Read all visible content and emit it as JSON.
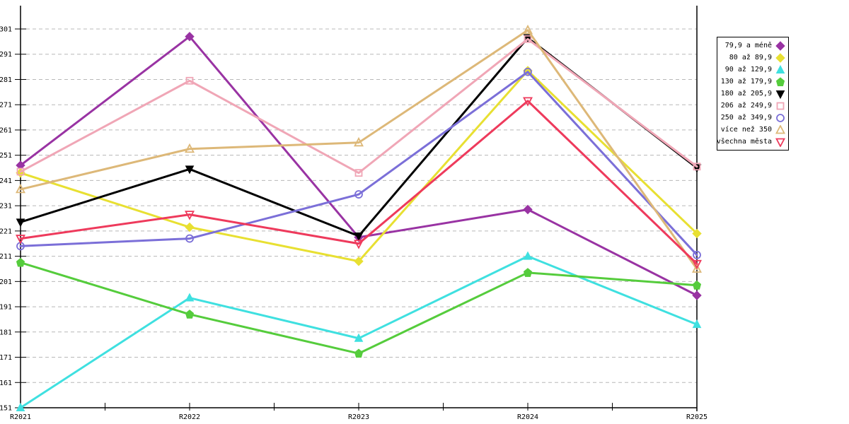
{
  "chart_data": {
    "type": "line",
    "title": "",
    "xlabel": "",
    "ylabel": "",
    "x_categories": [
      "R2021",
      "R2022",
      "R2023",
      "R2024",
      "R2025"
    ],
    "ylim": [
      151,
      301
    ],
    "ytick_step": 10,
    "grid": "horizontal-dashed",
    "grid_color": "#b8b8b8",
    "axis_color": "#000000",
    "legend_position": "outside-right",
    "series": [
      {
        "name": "79,9 a méně",
        "color": "#9933a3",
        "marker": "diamond",
        "marker_fill": "filled",
        "values": [
          247.0,
          298.0,
          218.5,
          229.5,
          195.5
        ]
      },
      {
        "name": "80 až 89,9",
        "color": "#e8e032",
        "marker": "diamond",
        "marker_fill": "filled",
        "values": [
          244.0,
          222.5,
          209.0,
          284.5,
          220.0
        ]
      },
      {
        "name": "90 až 129,9",
        "color": "#3fe0e0",
        "marker": "triangle-up",
        "marker_fill": "filled",
        "values": [
          151.0,
          194.5,
          178.5,
          211.0,
          184.0
        ]
      },
      {
        "name": "130 až 179,9",
        "color": "#55cc3c",
        "marker": "pentagon",
        "marker_fill": "filled",
        "values": [
          208.5,
          188.0,
          172.5,
          204.5,
          199.5
        ]
      },
      {
        "name": "180 až 205,9",
        "color": "#000000",
        "marker": "triangle-down",
        "marker_fill": "filled",
        "values": [
          224.5,
          245.5,
          219.0,
          297.5,
          246.0
        ]
      },
      {
        "name": "206 až 249,9",
        "color": "#f0a6b6",
        "marker": "square",
        "marker_fill": "open",
        "values": [
          244.5,
          280.5,
          244.0,
          297.0,
          246.5
        ]
      },
      {
        "name": "250 až 349,9",
        "color": "#7b6fd8",
        "marker": "circle",
        "marker_fill": "open",
        "values": [
          215.0,
          218.0,
          235.5,
          284.0,
          211.5
        ]
      },
      {
        "name": "více než 350",
        "color": "#ddb878",
        "marker": "triangle-up",
        "marker_fill": "open",
        "values": [
          237.5,
          253.5,
          256.0,
          300.5,
          206.0
        ]
      },
      {
        "name": "všechna města",
        "color": "#ee3a5c",
        "marker": "triangle-down",
        "marker_fill": "open",
        "values": [
          218.0,
          227.5,
          216.0,
          272.5,
          208.0
        ]
      }
    ]
  }
}
